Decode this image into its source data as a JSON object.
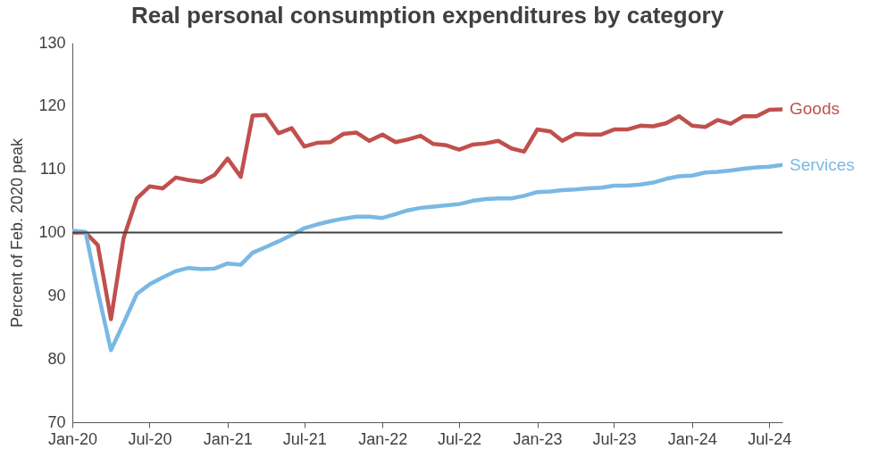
{
  "chart_data": {
    "type": "line",
    "title": "Real personal consumption expenditures by category",
    "ylabel": "Percent of Feb. 2020 peak",
    "x": [
      "2020-01",
      "2020-02",
      "2020-03",
      "2020-04",
      "2020-05",
      "2020-06",
      "2020-07",
      "2020-08",
      "2020-09",
      "2020-10",
      "2020-11",
      "2020-12",
      "2021-01",
      "2021-02",
      "2021-03",
      "2021-04",
      "2021-05",
      "2021-06",
      "2021-07",
      "2021-08",
      "2021-09",
      "2021-10",
      "2021-11",
      "2021-12",
      "2022-01",
      "2022-02",
      "2022-03",
      "2022-04",
      "2022-05",
      "2022-06",
      "2022-07",
      "2022-08",
      "2022-09",
      "2022-10",
      "2022-11",
      "2022-12",
      "2023-01",
      "2023-02",
      "2023-03",
      "2023-04",
      "2023-05",
      "2023-06",
      "2023-07",
      "2023-08",
      "2023-09",
      "2023-10",
      "2023-11",
      "2023-12",
      "2024-01",
      "2024-02",
      "2024-03",
      "2024-04",
      "2024-05",
      "2024-06",
      "2024-07",
      "2024-08"
    ],
    "series": [
      {
        "name": "Goods",
        "color": "#c0504d",
        "values": [
          100,
          100,
          98.0,
          86.3,
          99.2,
          105.4,
          107.3,
          107.0,
          108.7,
          108.3,
          108.0,
          109.1,
          111.7,
          108.8,
          118.5,
          118.6,
          115.7,
          116.5,
          113.6,
          114.2,
          114.3,
          115.6,
          115.8,
          114.5,
          115.5,
          114.3,
          114.7,
          115.3,
          114.0,
          113.8,
          113.1,
          113.9,
          114.1,
          114.5,
          113.3,
          112.8,
          116.3,
          116.0,
          114.5,
          115.6,
          115.5,
          115.5,
          116.3,
          116.3,
          116.9,
          116.8,
          117.3,
          118.4,
          116.9,
          116.7,
          117.8,
          117.2,
          118.4,
          118.4,
          119.4,
          119.5
        ]
      },
      {
        "name": "Services",
        "color": "#7ab8e4",
        "values": [
          100.3,
          100.1,
          90.7,
          81.4,
          85.7,
          90.3,
          91.8,
          92.9,
          93.9,
          94.4,
          94.2,
          94.3,
          95.1,
          94.9,
          96.8,
          97.7,
          98.6,
          99.6,
          100.7,
          101.3,
          101.8,
          102.2,
          102.5,
          102.5,
          102.3,
          102.9,
          103.5,
          103.9,
          104.1,
          104.3,
          104.5,
          105.0,
          105.3,
          105.4,
          105.4,
          105.8,
          106.4,
          106.5,
          106.7,
          106.8,
          107.0,
          107.1,
          107.4,
          107.4,
          107.6,
          107.9,
          108.5,
          108.9,
          109.0,
          109.5,
          109.6,
          109.8,
          110.1,
          110.3,
          110.4,
          110.7
        ]
      }
    ],
    "xlim": [
      "2020-01",
      "2024-08"
    ],
    "xticks": [
      {
        "value": "2020-01",
        "label": "Jan-20"
      },
      {
        "value": "2020-07",
        "label": "Jul-20"
      },
      {
        "value": "2021-01",
        "label": "Jan-21"
      },
      {
        "value": "2021-07",
        "label": "Jul-21"
      },
      {
        "value": "2022-01",
        "label": "Jan-22"
      },
      {
        "value": "2022-07",
        "label": "Jul-22"
      },
      {
        "value": "2023-01",
        "label": "Jan-23"
      },
      {
        "value": "2023-07",
        "label": "Jul-23"
      },
      {
        "value": "2024-01",
        "label": "Jan-24"
      },
      {
        "value": "2024-07",
        "label": "Jul-24"
      }
    ],
    "ylim": [
      70,
      130
    ],
    "yticks": [
      70,
      80,
      90,
      100,
      110,
      120,
      130
    ],
    "ref_lines": [
      {
        "axis": "y",
        "value": 100,
        "color": "#404040"
      }
    ],
    "grid": false,
    "legend": false,
    "marker": "none",
    "line_style": "solid"
  }
}
